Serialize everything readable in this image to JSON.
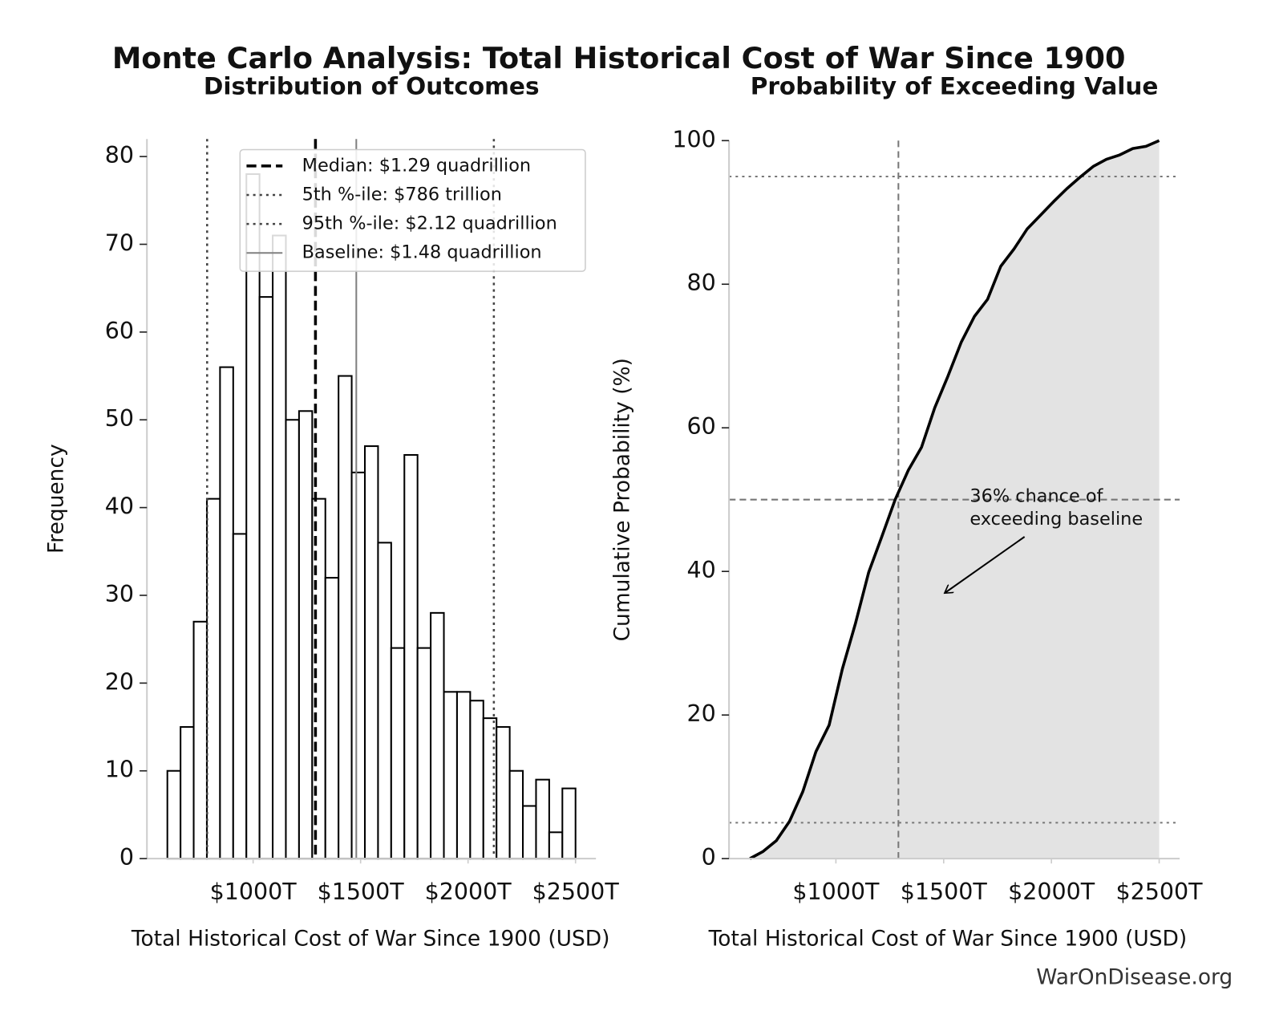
{
  "title": "Monte Carlo Analysis: Total Historical Cost of War Since 1900",
  "footer": "WarOnDisease.org",
  "chart_data": [
    {
      "type": "histogram",
      "title": "Distribution of Outcomes",
      "xlabel": "Total Historical Cost of War Since 1900 (USD)",
      "ylabel": "Frequency",
      "bins": [
        601.0,
        662.3,
        723.5,
        784.8,
        846.0,
        907.3,
        968.6,
        1029.8,
        1091.1,
        1152.3,
        1213.6,
        1274.9,
        1336.1,
        1397.4,
        1458.6,
        1519.9,
        1581.2,
        1642.4,
        1703.7,
        1764.9,
        1826.2,
        1887.5,
        1948.7,
        2010.0,
        2071.2,
        2132.5,
        2193.8,
        2255.0,
        2316.3,
        2377.5,
        2438.8,
        2500.0
      ],
      "counts": [
        10,
        15,
        27,
        41,
        56,
        37,
        78,
        64,
        71,
        50,
        51,
        41,
        32,
        55,
        44,
        47,
        36,
        24,
        46,
        24,
        28,
        19,
        19,
        18,
        16,
        15,
        10,
        6,
        9,
        3,
        8
      ],
      "color": "#ffffff",
      "edgecolor": "#000000",
      "xlim": [
        506,
        2595
      ],
      "ylim": [
        0,
        82
      ],
      "xticks": [
        {
          "value": 1000,
          "label": "$1000T"
        },
        {
          "value": 1500,
          "label": "$1500T"
        },
        {
          "value": 2000,
          "label": "$2000T"
        },
        {
          "value": 2500,
          "label": "$2500T"
        }
      ],
      "yticks": [
        0,
        10,
        20,
        30,
        40,
        50,
        60,
        70,
        80
      ],
      "legend": "upper right",
      "reference_lines": [
        {
          "name": "Median: $1.29 quadrillion",
          "value": 1290,
          "color": "#000000",
          "style": "dashed"
        },
        {
          "name": "5th %-ile: $786 trillion",
          "value": 786,
          "color": "#444444",
          "style": "dotted"
        },
        {
          "name": "95th %-ile: $2.12 quadrillion",
          "value": 2120,
          "color": "#444444",
          "style": "dotted"
        },
        {
          "name": "Baseline: $1.48 quadrillion",
          "value": 1480,
          "color": "#808080",
          "style": "solid"
        }
      ]
    },
    {
      "type": "line",
      "title": "Probability of Exceeding Value",
      "xlabel": "Total Historical Cost of War Since 1900 (USD)",
      "ylabel": "Cumulative Probability (%)",
      "x": [
        601.0,
        662.3,
        723.5,
        784.8,
        846.0,
        907.3,
        968.6,
        1029.8,
        1091.1,
        1152.3,
        1213.6,
        1274.9,
        1336.1,
        1397.4,
        1458.6,
        1519.9,
        1581.2,
        1642.4,
        1703.7,
        1764.9,
        1826.2,
        1887.5,
        1948.7,
        2010.0,
        2071.2,
        2132.5,
        2193.8,
        2255.0,
        2316.3,
        2377.5,
        2438.8,
        2500.0
      ],
      "series": [
        {
          "values": [
            0,
            1.0,
            2.5,
            5.2,
            9.3,
            14.9,
            18.6,
            26.4,
            32.8,
            39.9,
            44.9,
            50.0,
            54.1,
            57.3,
            62.8,
            67.2,
            71.9,
            75.5,
            77.9,
            82.5,
            84.9,
            87.7,
            89.6,
            91.5,
            93.3,
            94.9,
            96.4,
            97.4,
            98.0,
            98.9,
            99.2,
            100
          ],
          "color": "#000000"
        }
      ],
      "fill_color": "#e3e3e3",
      "xlim": [
        504,
        2595
      ],
      "ylim": [
        0,
        100
      ],
      "xticks": [
        {
          "value": 1000,
          "label": "$1000T"
        },
        {
          "value": 1500,
          "label": "$1500T"
        },
        {
          "value": 2000,
          "label": "$2000T"
        },
        {
          "value": 2500,
          "label": "$2500T"
        }
      ],
      "yticks": [
        0,
        20,
        40,
        60,
        80,
        100
      ],
      "hlines": [
        {
          "value": 5,
          "style": "dotted"
        },
        {
          "value": 95,
          "style": "dotted"
        },
        {
          "value": 50,
          "style": "dashed"
        }
      ],
      "vlines": [
        {
          "value": 1290,
          "style": "dashed"
        }
      ],
      "annotation": [
        "36% chance of",
        "exceeding baseline"
      ]
    }
  ]
}
